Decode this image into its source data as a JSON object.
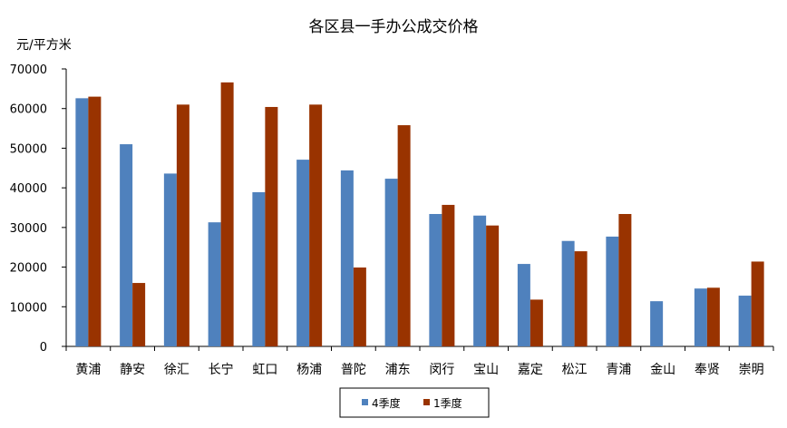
{
  "chart_data": {
    "type": "bar",
    "title": "各区县一手办公成交价格",
    "ylabel": "元/平方米",
    "xlabel": "",
    "ylim": [
      0,
      70000
    ],
    "yticks": [
      0,
      10000,
      20000,
      30000,
      40000,
      50000,
      60000,
      70000
    ],
    "grid": false,
    "legend_position": "bottom",
    "categories": [
      "黄浦",
      "静安",
      "徐汇",
      "长宁",
      "虹口",
      "杨浦",
      "普陀",
      "浦东",
      "闵行",
      "宝山",
      "嘉定",
      "松江",
      "青浦",
      "金山",
      "奉贤",
      "崇明"
    ],
    "series": [
      {
        "name": "4季度",
        "color": "#4f81bd",
        "values": [
          62600,
          51000,
          43600,
          31300,
          38900,
          47100,
          44400,
          42300,
          33400,
          33000,
          20800,
          26600,
          27700,
          11400,
          14600,
          12800
        ]
      },
      {
        "name": "1季度",
        "color": "#993300",
        "values": [
          63000,
          16000,
          61000,
          66600,
          60400,
          61000,
          19900,
          55800,
          35700,
          30500,
          11800,
          24000,
          33400,
          null,
          14800,
          21400
        ]
      }
    ]
  }
}
